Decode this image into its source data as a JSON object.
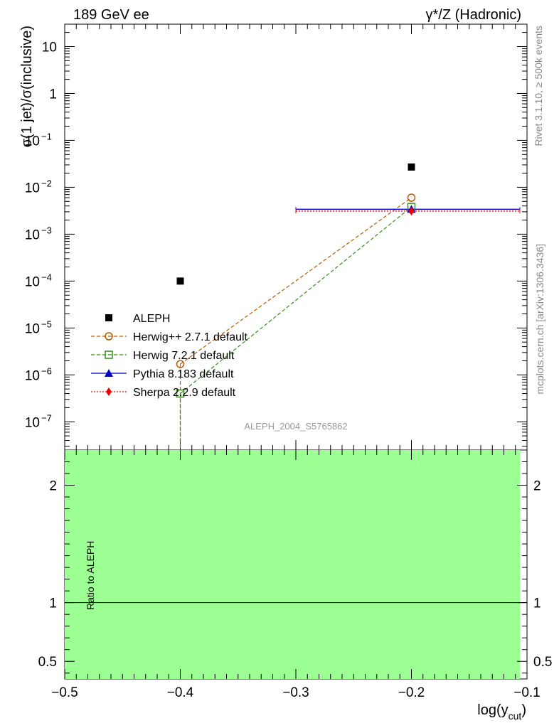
{
  "header": {
    "left_title": "189 GeV ee",
    "right_title": "γ*/Z (Hadronic)"
  },
  "side_labels": {
    "rivet": "Rivet 3.1.10, ≥ 500k events",
    "mcplots": "mcplots.cern.ch [arXiv:1306.3436]"
  },
  "watermark": "ALEPH_2004_S5765862",
  "chart_data": {
    "type": "scatter",
    "title": "189 GeV ee",
    "xlabel": "log(y_cut)",
    "ylabel": "σ(1 jet)/σ(inclusive)",
    "yscale": "log",
    "xlim": [
      -0.5,
      -0.1
    ],
    "ylim": [
      2.5e-08,
      30
    ],
    "x_ticks": [
      "−0.5",
      "−0.4",
      "−0.3",
      "−0.2",
      "−0.1"
    ],
    "y_ticks": [
      {
        "value": 10,
        "base": "10",
        "exp": ""
      },
      {
        "value": 1,
        "base": "1",
        "exp": ""
      },
      {
        "value": 0.1,
        "base": "10",
        "exp": "−1"
      },
      {
        "value": 0.01,
        "base": "10",
        "exp": "−2"
      },
      {
        "value": 0.001,
        "base": "10",
        "exp": "−3"
      },
      {
        "value": 0.0001,
        "base": "10",
        "exp": "−4"
      },
      {
        "value": 1e-05,
        "base": "10",
        "exp": "−5"
      },
      {
        "value": 1e-06,
        "base": "10",
        "exp": "−6"
      },
      {
        "value": 1e-07,
        "base": "10",
        "exp": "−7"
      }
    ],
    "series": [
      {
        "name": "ALEPH",
        "marker": "square",
        "color": "#000000",
        "line": "none",
        "points": [
          {
            "x": -0.4,
            "y": 0.0001
          },
          {
            "x": -0.2,
            "y": 0.027
          }
        ]
      },
      {
        "name": "Herwig++ 2.7.1 default",
        "marker": "circle-open",
        "color": "#b35a00",
        "line": "dashed",
        "points": [
          {
            "x": -0.4,
            "y": 1.7e-06
          },
          {
            "x": -0.2,
            "y": 0.006
          }
        ]
      },
      {
        "name": "Herwig 7.2.1 default",
        "marker": "square-open",
        "color": "#3a8c1a",
        "line": "dashed",
        "points": [
          {
            "x": -0.4,
            "y": 4e-07
          },
          {
            "x": -0.2,
            "y": 0.0038
          }
        ]
      },
      {
        "name": "Pythia 8.183 default",
        "marker": "triangle",
        "color": "#0000cc",
        "line": "solid",
        "points": [
          {
            "x": -0.2,
            "y": 0.0034,
            "xmin": -0.3,
            "xmax": -0.1
          }
        ]
      },
      {
        "name": "Sherpa 2.2.9 default",
        "marker": "diamond",
        "color": "#ee0000",
        "line": "dotted",
        "points": [
          {
            "x": -0.2,
            "y": 0.0031,
            "xmin": -0.3,
            "xmax": -0.1
          }
        ]
      }
    ],
    "ratio": {
      "ylabel": "Ratio to ALEPH",
      "ylim": [
        0.35,
        2.3
      ],
      "ticks": [
        "0.5",
        "1",
        "2"
      ],
      "band_color": "#9cff94",
      "band_range": [
        0.35,
        2.3
      ],
      "reference": 1
    }
  }
}
